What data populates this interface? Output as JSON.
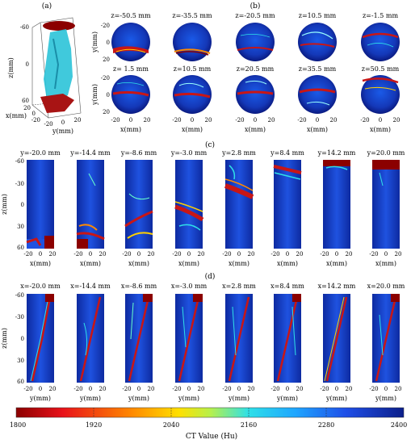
{
  "figure": {
    "panel_labels": {
      "a": "(a)",
      "b": "(b)",
      "c": "(c)",
      "d": "(d)"
    },
    "panel_a": {
      "zlabel": "z(mm)",
      "xlabel": "x(mm)",
      "ylabel": "y(mm)",
      "z_ticks": [
        "-60",
        "0",
        "60"
      ],
      "x_ticks": [
        "20",
        "0",
        "-20"
      ],
      "y_ticks": [
        "-20",
        "0",
        "20"
      ]
    },
    "panel_b": {
      "titles_row1": [
        "z=-50.5 mm",
        "z=-35.5 mm",
        "z=-20.5 mm",
        "z=10.5 mm",
        "z=-1.5 mm"
      ],
      "titles_row2": [
        "z= 1.5 mm",
        "z=10.5 mm",
        "z=20.5 mm",
        "z=35.5 mm",
        "z=50.5 mm"
      ],
      "ylabel": "y(mm)",
      "xlabel": "x(mm)",
      "y_ticks": [
        "-20",
        "0",
        "20"
      ],
      "x_ticks": [
        "-20",
        "0",
        "20"
      ]
    },
    "panel_c": {
      "titles": [
        "y=-20.0 mm",
        "y=-14.4 mm",
        "y=-8.6 mm",
        "y=-3.0 mm",
        "y=2.8 mm",
        "y=8.4 mm",
        "y=14.2 mm",
        "y=20.0 mm"
      ],
      "ylabel": "z(mm)",
      "xlabel": "x(mm)",
      "z_ticks": [
        "-60",
        "-30",
        "0",
        "30",
        "60"
      ],
      "x_ticks": [
        "-20",
        "0",
        "20"
      ]
    },
    "panel_d": {
      "titles": [
        "x=-20.0 mm",
        "x=-14.4 mm",
        "x=-8.6 mm",
        "x=-3.0 mm",
        "x=2.8 mm",
        "x=8.4 mm",
        "x=14.2 mm",
        "x=20.0 mm"
      ],
      "ylabel": "z(mm)",
      "xlabel": "y(mm)",
      "z_ticks": [
        "-60",
        "-30",
        "0",
        "30",
        "60"
      ],
      "x_ticks": [
        "-20",
        "0",
        "20"
      ]
    },
    "colorbar": {
      "label": "CT Value (Hu)",
      "ticks": [
        "1800",
        "1920",
        "2040",
        "2160",
        "2280",
        "2400"
      ],
      "colors": [
        "#8b0000",
        "#e8121a",
        "#ff8a00",
        "#ffe000",
        "#b8f04a",
        "#2ee0e8",
        "#1fa6ff",
        "#1f4fe8",
        "#0c1f8a"
      ]
    }
  }
}
